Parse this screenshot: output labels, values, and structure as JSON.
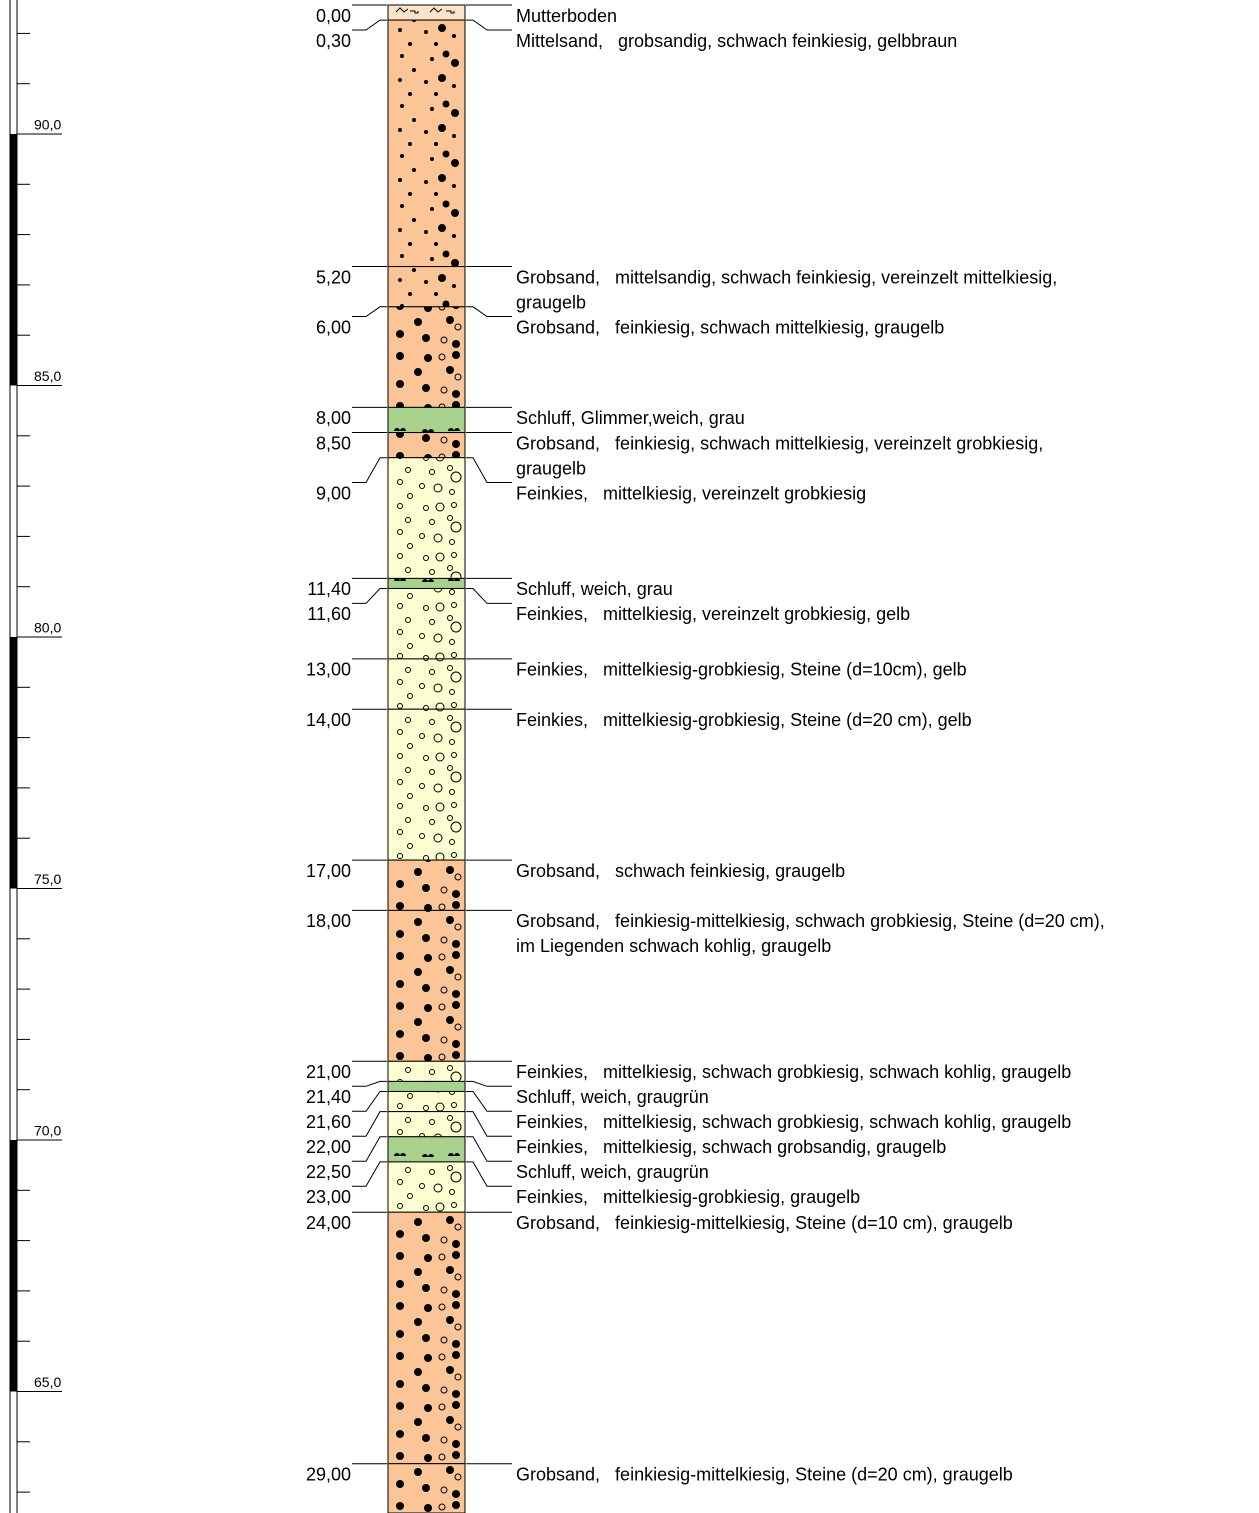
{
  "elevation_scale": {
    "ticks": [
      {
        "value": 90,
        "label": "90,0"
      },
      {
        "value": 85,
        "label": "85,0"
      },
      {
        "value": 80,
        "label": "80,0"
      },
      {
        "value": 75,
        "label": "75,0"
      },
      {
        "value": 70,
        "label": "70,0"
      },
      {
        "value": 65,
        "label": "65,0"
      }
    ]
  },
  "layers": [
    {
      "depth": {
        "value": 0,
        "label": "0,00"
      },
      "pattern": "topsoil",
      "lines": [
        "Mutterboden"
      ]
    },
    {
      "depth": {
        "value": 0.3,
        "label": "0,30"
      },
      "pattern": "sand",
      "lines": [
        "Mittelsand,   grobsandig, schwach feinkiesig, gelbbraun"
      ]
    },
    {
      "depth": {
        "value": 5.2,
        "label": "5,20"
      },
      "pattern": "sand",
      "lines": [
        "Grobsand,   mittelsandig, schwach feinkiesig, vereinzelt mittelkiesig,",
        "graugelb"
      ]
    },
    {
      "depth": {
        "value": 6,
        "label": "6,00"
      },
      "pattern": "coarse",
      "lines": [
        "Grobsand,   feinkiesig, schwach mittelkiesig, graugelb"
      ]
    },
    {
      "depth": {
        "value": 8,
        "label": "8,00"
      },
      "pattern": "silt",
      "lines": [
        "Schluff, Glimmer,weich, grau"
      ]
    },
    {
      "depth": {
        "value": 8.5,
        "label": "8,50"
      },
      "pattern": "coarse",
      "lines": [
        "Grobsand,   feinkiesig, schwach mittelkiesig, vereinzelt grobkiesig,",
        "graugelb"
      ]
    },
    {
      "depth": {
        "value": 9,
        "label": "9,00"
      },
      "pattern": "gravel",
      "lines": [
        "Feinkies,   mittelkiesig, vereinzelt grobkiesig"
      ]
    },
    {
      "depth": {
        "value": 11.4,
        "label": "11,40"
      },
      "pattern": "silt",
      "lines": [
        "Schluff, weich, grau"
      ]
    },
    {
      "depth": {
        "value": 11.6,
        "label": "11,60"
      },
      "pattern": "gravel",
      "lines": [
        "Feinkies,   mittelkiesig, vereinzelt grobkiesig, gelb"
      ]
    },
    {
      "depth": {
        "value": 13,
        "label": "13,00"
      },
      "pattern": "gravel",
      "lines": [
        "Feinkies,   mittelkiesig-grobkiesig, Steine (d=10cm), gelb"
      ]
    },
    {
      "depth": {
        "value": 14,
        "label": "14,00"
      },
      "pattern": "gravel",
      "lines": [
        "Feinkies,   mittelkiesig-grobkiesig, Steine (d=20 cm), gelb"
      ]
    },
    {
      "depth": {
        "value": 17,
        "label": "17,00"
      },
      "pattern": "coarse",
      "lines": [
        "Grobsand,   schwach feinkiesig, graugelb"
      ]
    },
    {
      "depth": {
        "value": 18,
        "label": "18,00"
      },
      "pattern": "coarse",
      "lines": [
        "Grobsand,   feinkiesig-mittelkiesig, schwach grobkiesig, Steine (d=20 cm),",
        "im Liegenden schwach kohlig, graugelb"
      ]
    },
    {
      "depth": {
        "value": 21,
        "label": "21,00"
      },
      "pattern": "gravel",
      "lines": [
        "Feinkies,   mittelkiesig, schwach grobkiesig, schwach kohlig, graugelb"
      ]
    },
    {
      "depth": {
        "value": 21.4,
        "label": "21,40"
      },
      "pattern": "silt",
      "lines": [
        "Schluff, weich, graugrün"
      ]
    },
    {
      "depth": {
        "value": 21.6,
        "label": "21,60"
      },
      "pattern": "gravel",
      "lines": [
        "Feinkies,   mittelkiesig, schwach grobkiesig, schwach kohlig, graugelb"
      ]
    },
    {
      "depth": {
        "value": 22,
        "label": "22,00"
      },
      "pattern": "gravel",
      "lines": [
        "Feinkies,   mittelkiesig, schwach grobsandig, graugelb"
      ]
    },
    {
      "depth": {
        "value": 22.5,
        "label": "22,50"
      },
      "pattern": "silt",
      "lines": [
        "Schluff, weich, graugrün"
      ]
    },
    {
      "depth": {
        "value": 23,
        "label": "23,00"
      },
      "pattern": "gravel",
      "lines": [
        "Feinkies,   mittelkiesig-grobkiesig, graugelb"
      ]
    },
    {
      "depth": {
        "value": 24,
        "label": "24,00"
      },
      "pattern": "coarse",
      "lines": [
        "Grobsand,   feinkiesig-mittelkiesig, Steine (d=10 cm), graugelb"
      ]
    },
    {
      "depth": {
        "value": 29,
        "label": "29,00"
      },
      "pattern": "coarse",
      "lines": [
        "Grobsand,   feinkiesig-mittelkiesig, Steine (d=20 cm), graugelb"
      ]
    }
  ]
}
